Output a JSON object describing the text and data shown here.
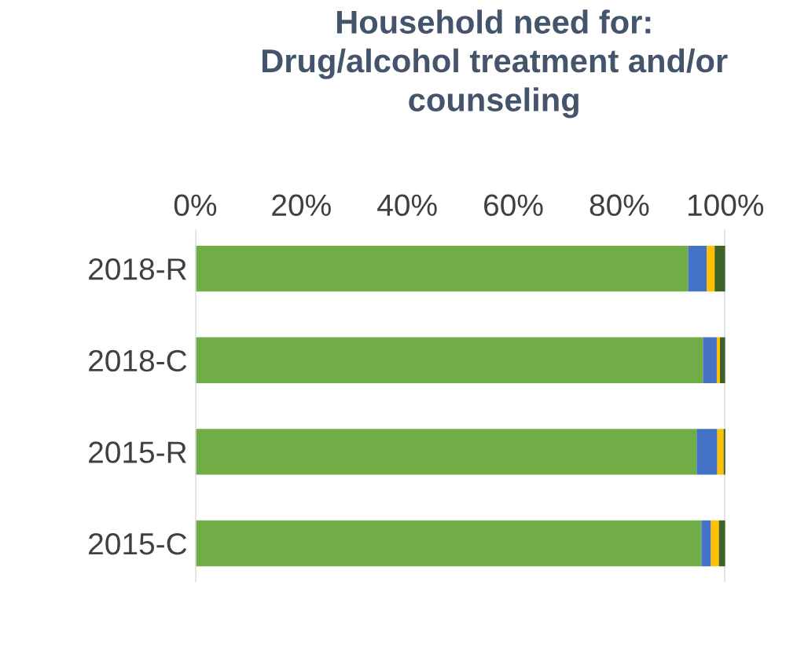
{
  "chart_data": {
    "type": "bar",
    "orientation": "horizontal",
    "stacked": true,
    "title": "Household need for:\nDrug/alcohol treatment and/or\ncounseling",
    "categories": [
      "2018-R",
      "2018-C",
      "2015-R",
      "2015-C"
    ],
    "series": [
      {
        "color": "#70ad47",
        "values": [
          93,
          95.8,
          94.6,
          95.5
        ]
      },
      {
        "color": "#4472c4",
        "values": [
          3.5,
          2.6,
          3.9,
          1.8
        ]
      },
      {
        "color": "#ffc000",
        "values": [
          1.5,
          0.6,
          1.2,
          1.5
        ]
      },
      {
        "color": "#3f6228",
        "values": [
          2,
          1,
          0.6,
          1.2
        ]
      }
    ],
    "xlim": [
      0,
      100
    ],
    "xticks": [
      {
        "value": 0,
        "label": "0%"
      },
      {
        "value": 20,
        "label": "20%"
      },
      {
        "value": 40,
        "label": "40%"
      },
      {
        "value": 60,
        "label": "60%"
      },
      {
        "value": 80,
        "label": "80%"
      },
      {
        "value": 100,
        "label": "100%"
      }
    ],
    "grid": false,
    "legend": false
  }
}
